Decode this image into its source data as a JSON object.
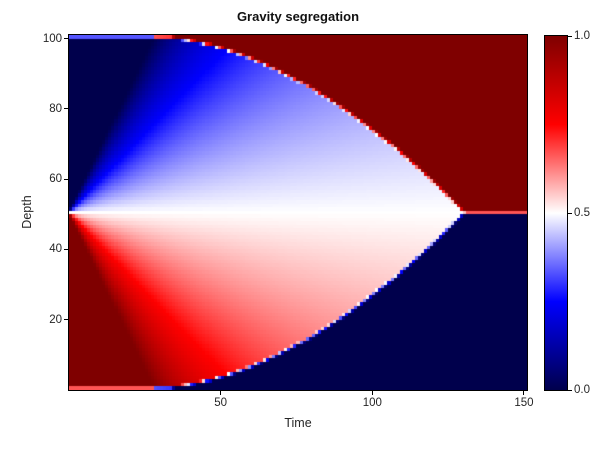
{
  "title": "Gravity segregation",
  "axes": {
    "x_label": "Time",
    "y_label": "Depth",
    "x_ticks": [
      {
        "v": 50,
        "label": "50"
      },
      {
        "v": 100,
        "label": "100"
      },
      {
        "v": 150,
        "label": "150"
      }
    ],
    "y_ticks": [
      {
        "v": 20,
        "label": "20"
      },
      {
        "v": 40,
        "label": "40"
      },
      {
        "v": 60,
        "label": "60"
      },
      {
        "v": 80,
        "label": "80"
      },
      {
        "v": 100,
        "label": "100"
      }
    ]
  },
  "colorbar": {
    "ticks": [
      {
        "v": 0.0,
        "label": "0.0"
      },
      {
        "v": 0.5,
        "label": "0.5"
      },
      {
        "v": 1.0,
        "label": "1.0"
      }
    ]
  },
  "chart_data": {
    "type": "heatmap",
    "title": "Gravity segregation",
    "xlabel": "Time",
    "ylabel": "Depth",
    "x_range": [
      0,
      151
    ],
    "y_range": [
      0,
      101
    ],
    "value_range": [
      0,
      1
    ],
    "grid": {
      "nx": 151,
      "ny": 101
    },
    "colormap": {
      "name": "seismic",
      "stops": [
        [
          0.0,
          "#00004C"
        ],
        [
          0.25,
          "#0000FF"
        ],
        [
          0.5,
          "#FFFFFF"
        ],
        [
          0.75,
          "#FF0000"
        ],
        [
          1.0,
          "#7F0000"
        ]
      ]
    },
    "field_model": {
      "description": "Gravity segregation of two fluids: value 0 (blue) initially above midline depth, value 1 (red) below; red rises and accumulates at top, blue sinks to bottom. Rarefaction fans spread from the midline; segregation shocks sweep inward from top and bottom boundaries and meet at the midline when segregation completes.",
      "midline_depth": 50.5,
      "fan_speed": 1.7857,
      "shock_start_time": 28,
      "shock_coeff": 0.012,
      "shock_power": 1.8,
      "segregation_complete_time": 130.5
    },
    "sample_grid": {
      "times": [
        10,
        25,
        50,
        75,
        100,
        125,
        140
      ],
      "depths": [
        10,
        25,
        40,
        50.5,
        60,
        75,
        90
      ],
      "values": [
        [
          1.0,
          0.95,
          0.73,
          0.0,
          0.0,
          0.0,
          0.0
        ],
        [
          1.0,
          0.79,
          0.64,
          0.6,
          0.0,
          0.0,
          0.0
        ],
        [
          0.79,
          0.62,
          0.56,
          0.54,
          0.53,
          0.0,
          0.0
        ],
        [
          0.5,
          0.5,
          0.5,
          0.5,
          0.5,
          0.5,
          1.0
        ],
        [
          0.24,
          0.39,
          0.45,
          0.47,
          0.47,
          1.0,
          1.0
        ],
        [
          0.0,
          0.23,
          0.36,
          0.41,
          1.0,
          1.0,
          1.0
        ],
        [
          0.0,
          0.06,
          0.28,
          1.0,
          1.0,
          1.0,
          1.0
        ]
      ]
    },
    "legend": "colorbar right, range 0.0 - 1.0"
  }
}
